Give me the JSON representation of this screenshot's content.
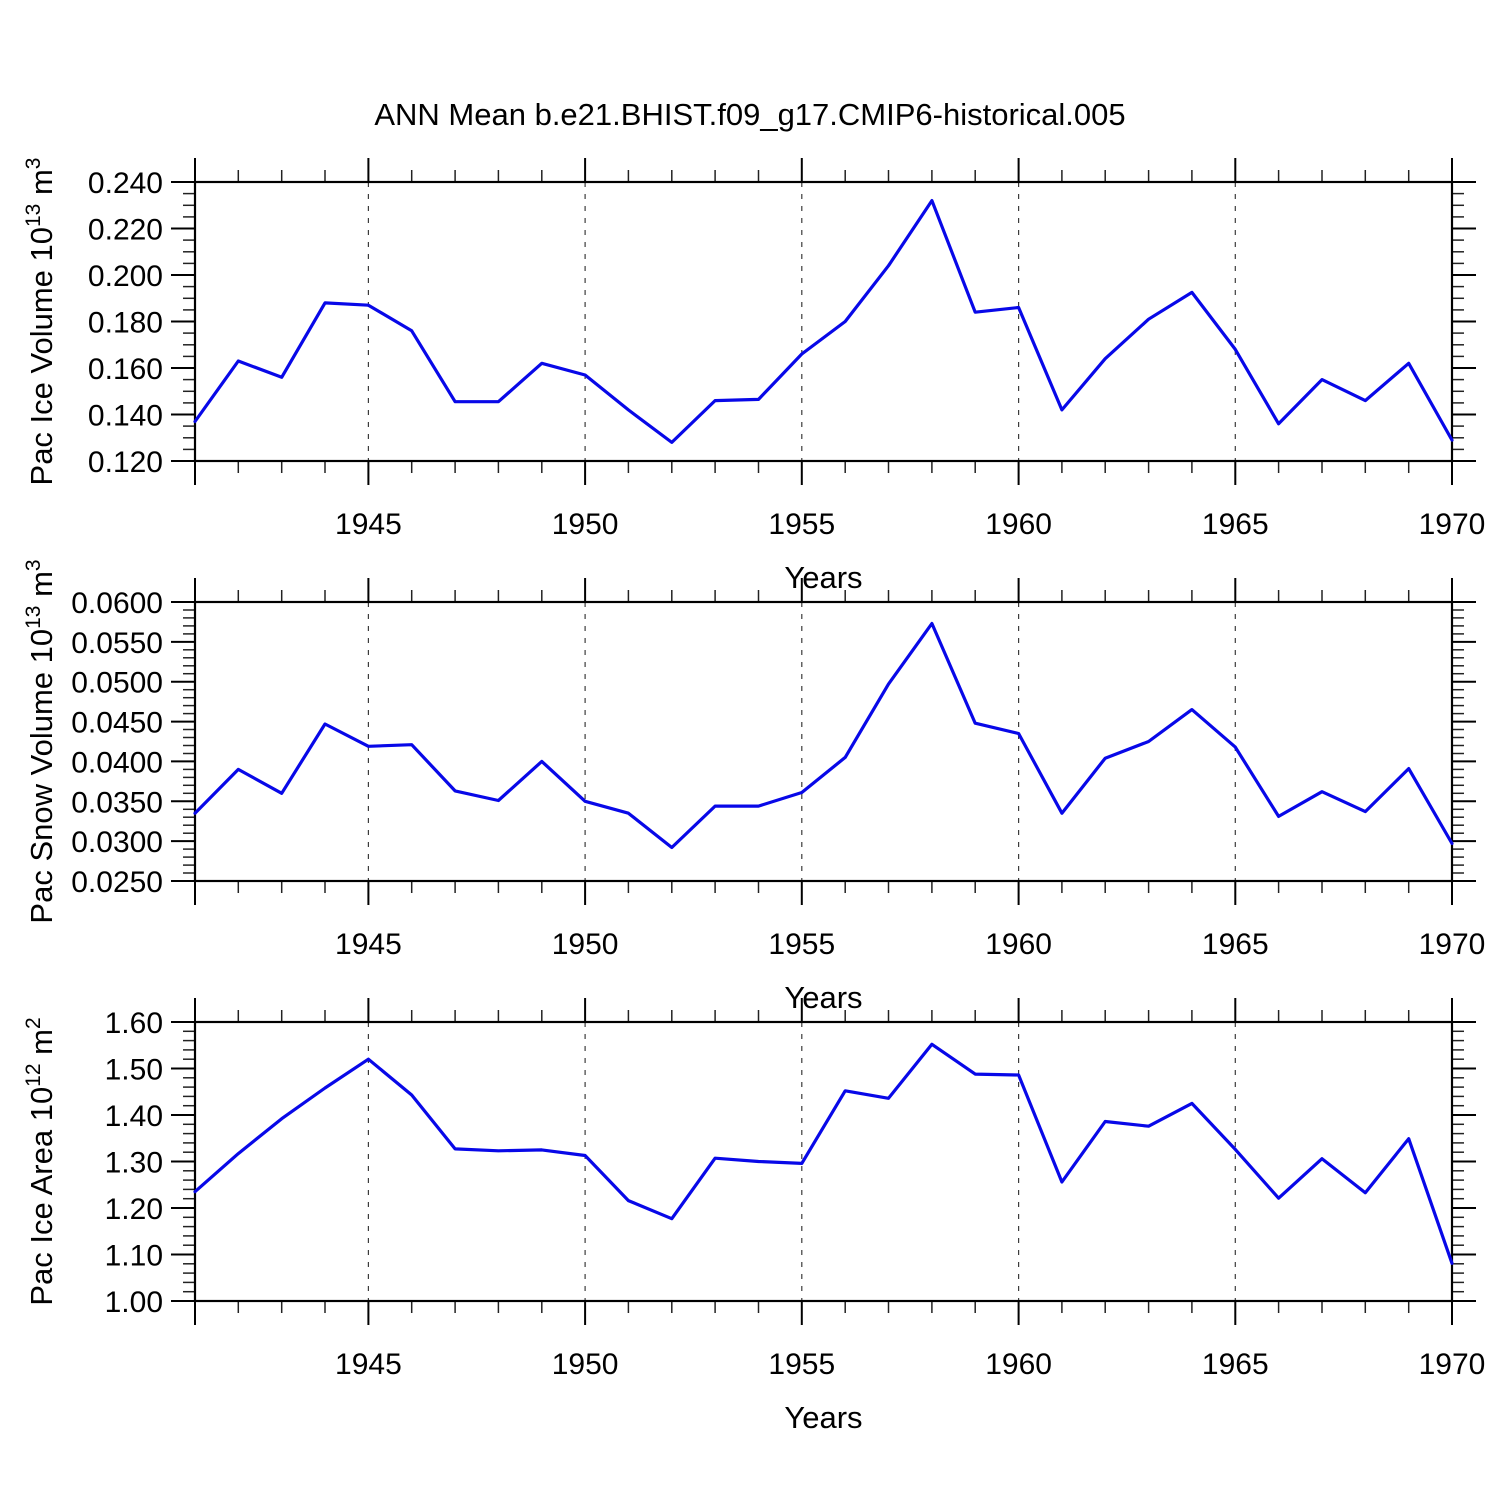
{
  "title": "ANN Mean b.e21.BHIST.f09_g17.CMIP6-historical.005",
  "line_color": "#0808e8",
  "chart_data": [
    {
      "type": "line",
      "name": "Pac Ice Volume",
      "ylabel_plain": "Pac Ice Volume 10^13 m^3",
      "ylabel_parts": [
        {
          "t": "Pac Ice Volume 10"
        },
        {
          "s": "13"
        },
        {
          "t": " m"
        },
        {
          "s": "3"
        }
      ],
      "xlabel": "Years",
      "x_range": [
        1941,
        1970
      ],
      "x_major_ticks": [
        1945,
        1950,
        1955,
        1960,
        1965,
        1970
      ],
      "x_gridlines": [
        1945,
        1950,
        1955,
        1960,
        1965
      ],
      "ylim": [
        0.12,
        0.24
      ],
      "ytick_step": 0.02,
      "yminor_step": 0.005,
      "ydecimals": 3,
      "grid": true,
      "legend": "none",
      "x": [
        1941,
        1942,
        1943,
        1944,
        1945,
        1946,
        1947,
        1948,
        1949,
        1950,
        1951,
        1952,
        1953,
        1954,
        1955,
        1956,
        1957,
        1958,
        1959,
        1960,
        1961,
        1962,
        1963,
        1964,
        1965,
        1966,
        1967,
        1968,
        1969,
        1970
      ],
      "values": [
        0.137,
        0.163,
        0.156,
        0.188,
        0.187,
        0.176,
        0.1455,
        0.1455,
        0.162,
        0.157,
        0.142,
        0.128,
        0.146,
        0.1465,
        0.166,
        0.18,
        0.204,
        0.232,
        0.184,
        0.186,
        0.142,
        0.164,
        0.181,
        0.1925,
        0.168,
        0.136,
        0.155,
        0.146,
        0.162,
        0.129
      ]
    },
    {
      "type": "line",
      "name": "Pac Snow Volume",
      "ylabel_plain": "Pac Snow Volume 10^13 m^3",
      "ylabel_parts": [
        {
          "t": "Pac Snow Volume 10"
        },
        {
          "s": "13"
        },
        {
          "t": " m"
        },
        {
          "s": "3"
        }
      ],
      "xlabel": "Years",
      "x_range": [
        1941,
        1970
      ],
      "x_major_ticks": [
        1945,
        1950,
        1955,
        1960,
        1965,
        1970
      ],
      "x_gridlines": [
        1945,
        1950,
        1955,
        1960,
        1965
      ],
      "ylim": [
        0.025,
        0.06
      ],
      "ytick_step": 0.005,
      "yminor_step": 0.001,
      "ydecimals": 4,
      "grid": true,
      "legend": "none",
      "x": [
        1941,
        1942,
        1943,
        1944,
        1945,
        1946,
        1947,
        1948,
        1949,
        1950,
        1951,
        1952,
        1953,
        1954,
        1955,
        1956,
        1957,
        1958,
        1959,
        1960,
        1961,
        1962,
        1963,
        1964,
        1965,
        1966,
        1967,
        1968,
        1969,
        1970
      ],
      "values": [
        0.0335,
        0.039,
        0.036,
        0.0447,
        0.0419,
        0.0421,
        0.0363,
        0.0351,
        0.04,
        0.035,
        0.0335,
        0.0292,
        0.0344,
        0.0344,
        0.0361,
        0.0405,
        0.0497,
        0.0573,
        0.0448,
        0.0435,
        0.0335,
        0.0404,
        0.0425,
        0.0465,
        0.0418,
        0.0331,
        0.0362,
        0.0337,
        0.0391,
        0.0297
      ]
    },
    {
      "type": "line",
      "name": "Pac Ice Area",
      "ylabel_plain": "Pac Ice Area 10^12 m^2",
      "ylabel_parts": [
        {
          "t": "Pac Ice Area 10"
        },
        {
          "s": "12"
        },
        {
          "t": " m"
        },
        {
          "s": "2"
        }
      ],
      "xlabel": "Years",
      "x_range": [
        1941,
        1970
      ],
      "x_major_ticks": [
        1945,
        1950,
        1955,
        1960,
        1965,
        1970
      ],
      "x_gridlines": [
        1945,
        1950,
        1955,
        1960,
        1965
      ],
      "ylim": [
        1.0,
        1.6
      ],
      "ytick_step": 0.1,
      "yminor_step": 0.02,
      "ydecimals": 2,
      "grid": true,
      "legend": "none",
      "x": [
        1941,
        1942,
        1943,
        1944,
        1945,
        1946,
        1947,
        1948,
        1949,
        1950,
        1951,
        1952,
        1953,
        1954,
        1955,
        1956,
        1957,
        1958,
        1959,
        1960,
        1961,
        1962,
        1963,
        1964,
        1965,
        1966,
        1967,
        1968,
        1969,
        1970
      ],
      "values": [
        1.235,
        1.317,
        1.392,
        1.458,
        1.52,
        1.443,
        1.327,
        1.323,
        1.325,
        1.313,
        1.216,
        1.177,
        1.307,
        1.3,
        1.296,
        1.452,
        1.436,
        1.552,
        1.488,
        1.486,
        1.256,
        1.386,
        1.376,
        1.425,
        1.326,
        1.221,
        1.306,
        1.233,
        1.349,
        1.081
      ]
    }
  ]
}
